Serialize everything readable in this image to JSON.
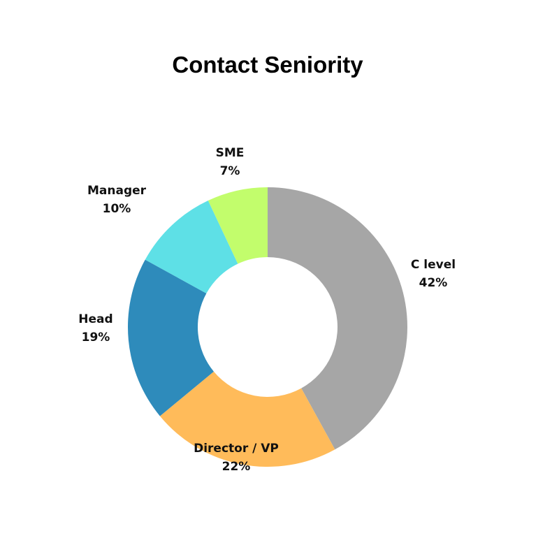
{
  "chart_data": {
    "type": "pie",
    "donut": true,
    "title": "Contact Seniority",
    "start": "top",
    "direction": "clockwise",
    "slices": [
      {
        "label": "C level",
        "value": 42,
        "value_label": "42%",
        "color": "#a6a6a6"
      },
      {
        "label": "Director / VP",
        "value": 22,
        "value_label": "22%",
        "color": "#ffbb5a"
      },
      {
        "label": "Head",
        "value": 19,
        "value_label": "19%",
        "color": "#2e8bbb"
      },
      {
        "label": "Manager",
        "value": 10,
        "value_label": "10%",
        "color": "#5ee0e6"
      },
      {
        "label": "SME",
        "value": 7,
        "value_label": "7%",
        "color": "#c2fd6c"
      }
    ],
    "legend": "none"
  }
}
